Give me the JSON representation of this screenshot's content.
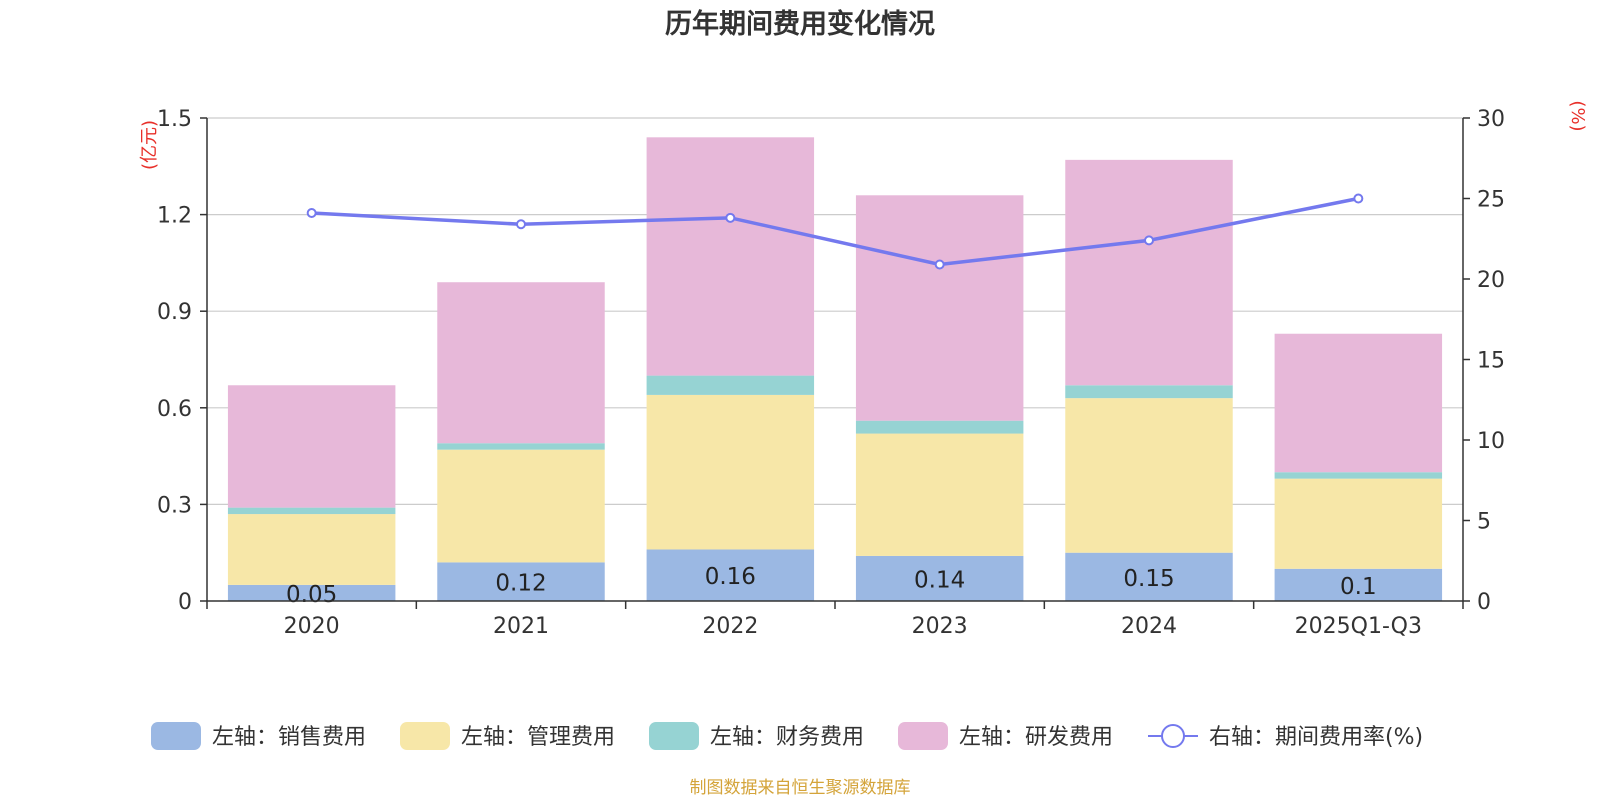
{
  "chart_data": {
    "type": "bar",
    "stacked": true,
    "title": "历年期间费用变化情况",
    "categories": [
      "2020",
      "2021",
      "2022",
      "2023",
      "2024",
      "2025Q1-Q3"
    ],
    "left_axis": {
      "unit_label": "(亿元)",
      "min": 0,
      "max": 1.5,
      "ticks": [
        "0",
        "0.3",
        "0.6",
        "0.9",
        "1.2",
        "1.5"
      ]
    },
    "right_axis": {
      "unit_label": "(%)",
      "min": 0,
      "max": 30,
      "ticks": [
        "0",
        "5",
        "10",
        "15",
        "20",
        "25",
        "30"
      ]
    },
    "series": [
      {
        "name": "左轴：销售费用",
        "type": "bar",
        "axis": "left",
        "color": "#9bb8e3",
        "values": [
          0.05,
          0.12,
          0.16,
          0.14,
          0.15,
          0.1
        ],
        "labels": [
          "0.05",
          "0.12",
          "0.16",
          "0.14",
          "0.15",
          "0.1"
        ]
      },
      {
        "name": "左轴：管理费用",
        "type": "bar",
        "axis": "left",
        "color": "#f7e7a8",
        "values": [
          0.22,
          0.35,
          0.48,
          0.38,
          0.48,
          0.28
        ]
      },
      {
        "name": "左轴：财务费用",
        "type": "bar",
        "axis": "left",
        "color": "#96d3d3",
        "values": [
          0.02,
          0.02,
          0.06,
          0.04,
          0.04,
          0.02
        ]
      },
      {
        "name": "左轴：研发费用",
        "type": "bar",
        "axis": "left",
        "color": "#e7b8d9",
        "values": [
          0.38,
          0.5,
          0.74,
          0.7,
          0.7,
          0.43
        ]
      },
      {
        "name": "右轴：期间费用率(%)",
        "type": "line",
        "axis": "right",
        "color": "#7479ee",
        "values": [
          24.1,
          23.4,
          23.8,
          20.9,
          22.4,
          25.0
        ]
      }
    ],
    "legend_position": "bottom"
  },
  "source": {
    "text": "制图数据来自恒生聚源数据库",
    "color": "#d4a43a"
  },
  "colors": {
    "axis_unit": "#e8302a",
    "grid": "#cccccc",
    "axis": "#333333"
  }
}
